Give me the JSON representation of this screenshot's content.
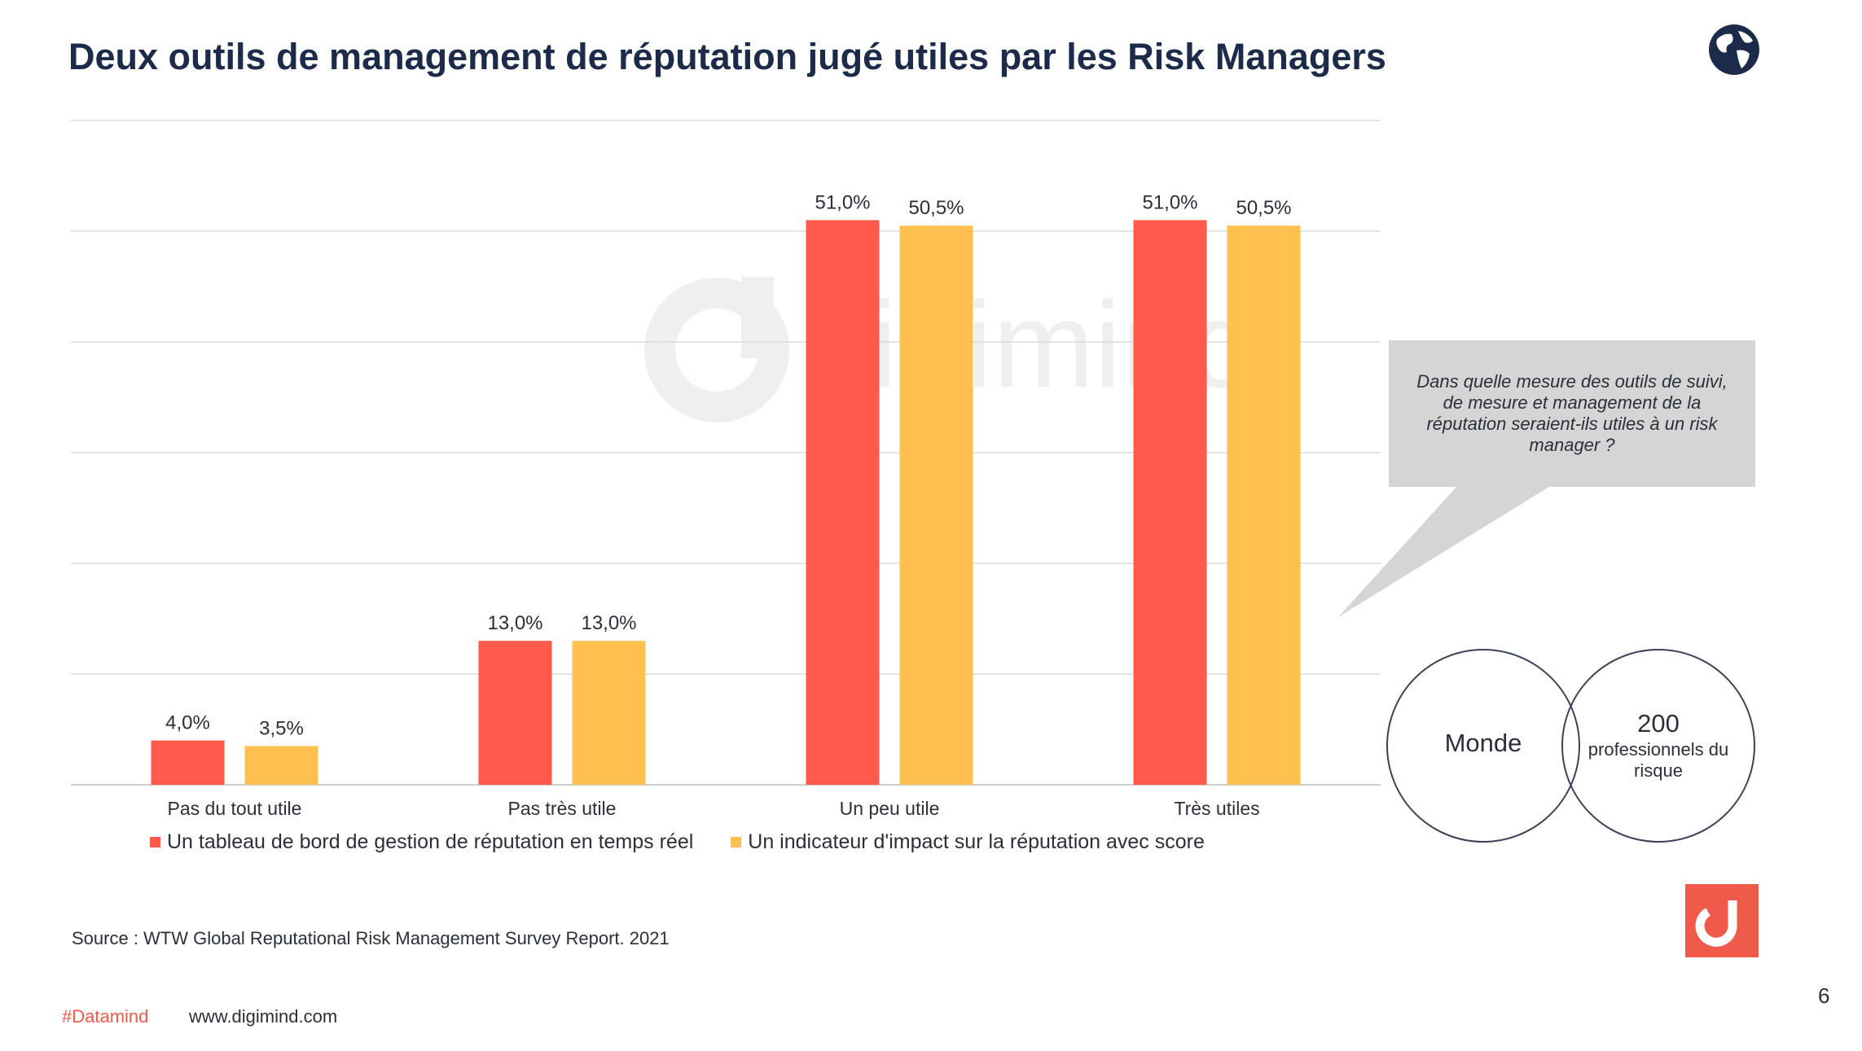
{
  "slide": {
    "title": "Deux outils de management de réputation jugé utiles par les Risk Managers",
    "watermark_brand": "digimind",
    "callout": {
      "question": "Dans quelle mesure des outils  de suivi, de mesure  et management de la réputation seraient-ils utiles à un risk manager ?"
    },
    "venn": {
      "left_label": "Monde",
      "right_number": "200",
      "right_label": "professionnels du risque"
    },
    "source": "Source : WTW Global Reputational Risk Management Survey Report. 2021",
    "footer": {
      "hashtag": "#Datamind",
      "website": "www.digimind.com",
      "page_number": "6"
    },
    "icons": {
      "globe": "globe-icon",
      "logo": "digimind-logo-icon"
    },
    "colors": {
      "series1": "#ff5a4b",
      "series2": "#ffc04f",
      "brand": "#ef5a4a",
      "title": "#1c2b4a"
    }
  },
  "chart_data": {
    "type": "bar",
    "categories": [
      "Pas du tout utile",
      "Pas très utile",
      "Un peu utile",
      "Très utiles"
    ],
    "series": [
      {
        "name": "Un tableau de bord de gestion de réputation en temps réel",
        "values": [
          4.0,
          13.0,
          51.0,
          51.0
        ],
        "labels": [
          "4,0%",
          "13,0%",
          "51,0%",
          "51,0%"
        ]
      },
      {
        "name": "Un indicateur d'impact sur la réputation avec score",
        "values": [
          3.5,
          13.0,
          50.5,
          50.5
        ],
        "labels": [
          "3,5%",
          "13,0%",
          "50,5%",
          "50,5%"
        ]
      }
    ],
    "ylim": [
      0,
      60
    ],
    "grid": true,
    "legend": "bottom",
    "title": "",
    "xlabel": "",
    "ylabel": ""
  }
}
